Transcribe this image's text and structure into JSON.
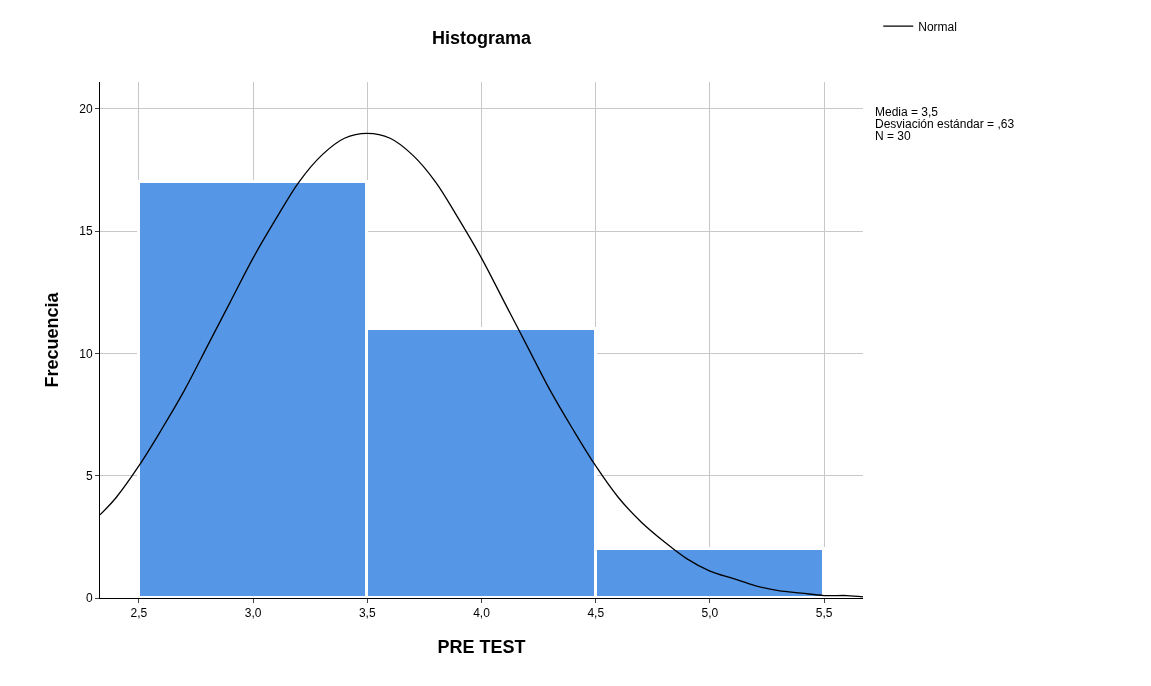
{
  "chart_data": {
    "type": "histogram",
    "title": "Histograma",
    "xlabel": "PRE TEST",
    "ylabel": "Frecuencia",
    "bins": [
      2.5,
      3.5,
      4.5,
      5.5
    ],
    "values": [
      17,
      11,
      2
    ],
    "color": "#5596e6",
    "series": [
      {
        "name": "Normal",
        "type": "line",
        "color": "#000000",
        "x": [
          2.33,
          2.4,
          2.5,
          2.6,
          2.7,
          2.8,
          2.9,
          3.0,
          3.1,
          3.2,
          3.3,
          3.4,
          3.5,
          3.6,
          3.7,
          3.8,
          3.9,
          4.0,
          4.1,
          4.2,
          4.3,
          4.4,
          4.5,
          4.6,
          4.7,
          4.8,
          4.9,
          5.0,
          5.1,
          5.2,
          5.3,
          5.4,
          5.5,
          5.6,
          5.67
        ],
        "values": [
          3.4,
          4.1,
          5.4,
          6.9,
          8.5,
          10.3,
          12.1,
          13.9,
          15.5,
          17.0,
          18.1,
          18.8,
          19.0,
          18.8,
          18.1,
          17.0,
          15.5,
          13.9,
          12.1,
          10.3,
          8.5,
          6.9,
          5.4,
          4.1,
          3.1,
          2.3,
          1.6,
          1.1,
          0.8,
          0.5,
          0.3,
          0.2,
          0.1,
          0.1,
          0.05
        ]
      }
    ],
    "annotations": [
      "Media = 3,5",
      "Desviación estándar = ,63",
      "N = 30"
    ],
    "xlim": [
      2.33,
      5.67
    ],
    "xticks": [
      {
        "value": 2.5,
        "label": "2,5"
      },
      {
        "value": 3,
        "label": "3,0"
      },
      {
        "value": 3.5,
        "label": "3,5"
      },
      {
        "value": 4,
        "label": "4,0"
      },
      {
        "value": 4.5,
        "label": "4,5"
      },
      {
        "value": 5,
        "label": "5,0"
      },
      {
        "value": 5.5,
        "label": "5,5"
      }
    ],
    "ylim": [
      0,
      21.1
    ],
    "yticks": [
      0,
      5,
      10,
      15,
      20
    ],
    "grid": true,
    "legend": "top right"
  }
}
